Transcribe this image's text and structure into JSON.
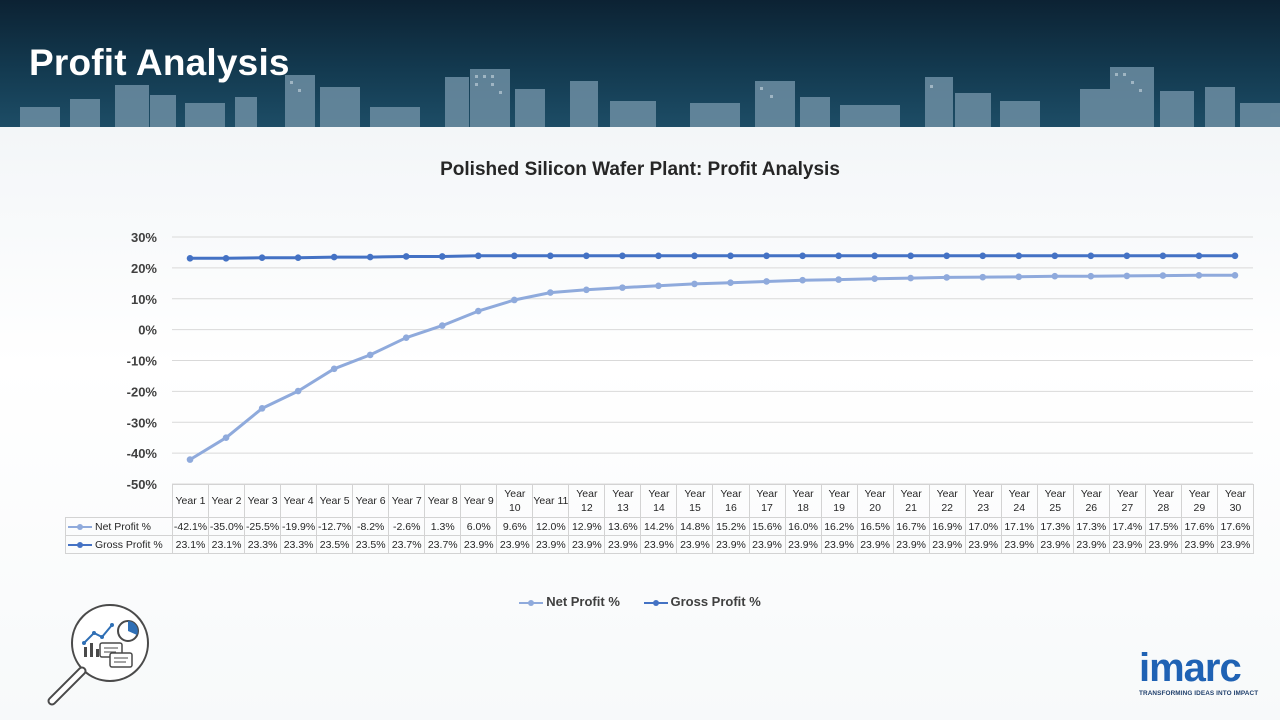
{
  "page": {
    "title": "Profit Analysis"
  },
  "colors": {
    "net_profit": "#8faadc",
    "gross_profit": "#4472c4",
    "header_bg": "#133a50",
    "logo": "#1f62b4"
  },
  "icons": {
    "illustration": "magnifier-analytics-icon"
  },
  "brand": {
    "name": "imarc",
    "tagline": "TRANSFORMING IDEAS INTO IMPACT"
  },
  "chart_data": {
    "type": "line",
    "title": "Polished Silicon Wafer Plant: Profit Analysis",
    "xlabel": "",
    "ylabel": "",
    "ylim": [
      -50,
      30
    ],
    "yticks": [
      "30%",
      "20%",
      "10%",
      "0%",
      "-10%",
      "-20%",
      "-30%",
      "-40%",
      "-50%"
    ],
    "grid": true,
    "legend": "bottom",
    "categories": [
      "Year 1",
      "Year 2",
      "Year 3",
      "Year 4",
      "Year 5",
      "Year 6",
      "Year 7",
      "Year 8",
      "Year 9",
      "Year 10",
      "Year 11",
      "Year 12",
      "Year 13",
      "Year 14",
      "Year 15",
      "Year 16",
      "Year 17",
      "Year 18",
      "Year 19",
      "Year 20",
      "Year 21",
      "Year 22",
      "Year 23",
      "Year 24",
      "Year 25",
      "Year 26",
      "Year 27",
      "Year 28",
      "Year 29",
      "Year 30"
    ],
    "series": [
      {
        "name": "Net Profit %",
        "color": "#8faadc",
        "values": [
          -42.1,
          -35.0,
          -25.5,
          -19.9,
          -12.7,
          -8.2,
          -2.6,
          1.3,
          6.0,
          9.6,
          12.0,
          12.9,
          13.6,
          14.2,
          14.8,
          15.2,
          15.6,
          16.0,
          16.2,
          16.5,
          16.7,
          16.9,
          17.0,
          17.1,
          17.3,
          17.3,
          17.4,
          17.5,
          17.6,
          17.6
        ],
        "labels": [
          "-42.1%",
          "-35.0%",
          "-25.5%",
          "-19.9%",
          "-12.7%",
          "-8.2%",
          "-2.6%",
          "1.3%",
          "6.0%",
          "9.6%",
          "12.0%",
          "12.9%",
          "13.6%",
          "14.2%",
          "14.8%",
          "15.2%",
          "15.6%",
          "16.0%",
          "16.2%",
          "16.5%",
          "16.7%",
          "16.9%",
          "17.0%",
          "17.1%",
          "17.3%",
          "17.3%",
          "17.4%",
          "17.5%",
          "17.6%",
          "17.6%"
        ]
      },
      {
        "name": "Gross Profit %",
        "color": "#4472c4",
        "values": [
          23.1,
          23.1,
          23.3,
          23.3,
          23.5,
          23.5,
          23.7,
          23.7,
          23.9,
          23.9,
          23.9,
          23.9,
          23.9,
          23.9,
          23.9,
          23.9,
          23.9,
          23.9,
          23.9,
          23.9,
          23.9,
          23.9,
          23.9,
          23.9,
          23.9,
          23.9,
          23.9,
          23.9,
          23.9,
          23.9
        ],
        "labels": [
          "23.1%",
          "23.1%",
          "23.3%",
          "23.3%",
          "23.5%",
          "23.5%",
          "23.7%",
          "23.7%",
          "23.9%",
          "23.9%",
          "23.9%",
          "23.9%",
          "23.9%",
          "23.9%",
          "23.9%",
          "23.9%",
          "23.9%",
          "23.9%",
          "23.9%",
          "23.9%",
          "23.9%",
          "23.9%",
          "23.9%",
          "23.9%",
          "23.9%",
          "23.9%",
          "23.9%",
          "23.9%",
          "23.9%",
          "23.9%"
        ]
      }
    ]
  }
}
